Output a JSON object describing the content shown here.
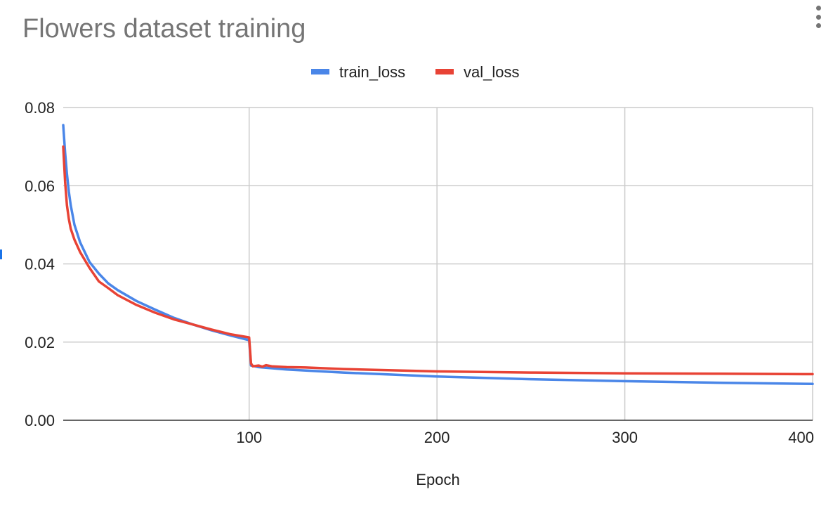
{
  "chart_data": {
    "type": "line",
    "title": "Flowers dataset training",
    "xlabel": "Epoch",
    "ylabel": "",
    "xlim": [
      1,
      400
    ],
    "ylim": [
      0,
      0.08
    ],
    "xticks": [
      100,
      200,
      300,
      400
    ],
    "xtick_labels": [
      "100",
      "200",
      "300",
      "400"
    ],
    "yticks": [
      0,
      0.02,
      0.04,
      0.06,
      0.08
    ],
    "ytick_labels": [
      "0.00",
      "0.02",
      "0.04",
      "0.06",
      "0.08"
    ],
    "grid": true,
    "legend_position": "top-center",
    "series": [
      {
        "name": "train_loss",
        "color": "#4a86e8",
        "points": [
          [
            1,
            0.0755
          ],
          [
            2,
            0.0685
          ],
          [
            3,
            0.063
          ],
          [
            4,
            0.0585
          ],
          [
            5,
            0.055
          ],
          [
            7,
            0.05
          ],
          [
            10,
            0.0455
          ],
          [
            15,
            0.0405
          ],
          [
            20,
            0.0375
          ],
          [
            25,
            0.035
          ],
          [
            30,
            0.0333
          ],
          [
            40,
            0.0305
          ],
          [
            50,
            0.0283
          ],
          [
            60,
            0.0262
          ],
          [
            70,
            0.0245
          ],
          [
            80,
            0.023
          ],
          [
            90,
            0.0217
          ],
          [
            100,
            0.0205
          ],
          [
            101,
            0.014
          ],
          [
            105,
            0.0136
          ],
          [
            110,
            0.0134
          ],
          [
            120,
            0.013
          ],
          [
            150,
            0.0122
          ],
          [
            200,
            0.0112
          ],
          [
            250,
            0.0105
          ],
          [
            300,
            0.01
          ],
          [
            350,
            0.0096
          ],
          [
            400,
            0.0093
          ]
        ]
      },
      {
        "name": "val_loss",
        "color": "#e84335",
        "points": [
          [
            1,
            0.07
          ],
          [
            2,
            0.061
          ],
          [
            3,
            0.055
          ],
          [
            4,
            0.0515
          ],
          [
            5,
            0.049
          ],
          [
            7,
            0.0462
          ],
          [
            10,
            0.043
          ],
          [
            15,
            0.039
          ],
          [
            20,
            0.0355
          ],
          [
            25,
            0.0338
          ],
          [
            30,
            0.032
          ],
          [
            40,
            0.0295
          ],
          [
            50,
            0.0275
          ],
          [
            60,
            0.0258
          ],
          [
            70,
            0.0245
          ],
          [
            80,
            0.0232
          ],
          [
            90,
            0.022
          ],
          [
            100,
            0.0212
          ],
          [
            101,
            0.0145
          ],
          [
            102,
            0.0138
          ],
          [
            105,
            0.014
          ],
          [
            107,
            0.0137
          ],
          [
            109,
            0.0141
          ],
          [
            112,
            0.0138
          ],
          [
            120,
            0.0136
          ],
          [
            130,
            0.0135
          ],
          [
            150,
            0.0131
          ],
          [
            200,
            0.0125
          ],
          [
            250,
            0.0122
          ],
          [
            300,
            0.012
          ],
          [
            350,
            0.0119
          ],
          [
            400,
            0.0118
          ]
        ]
      }
    ]
  }
}
